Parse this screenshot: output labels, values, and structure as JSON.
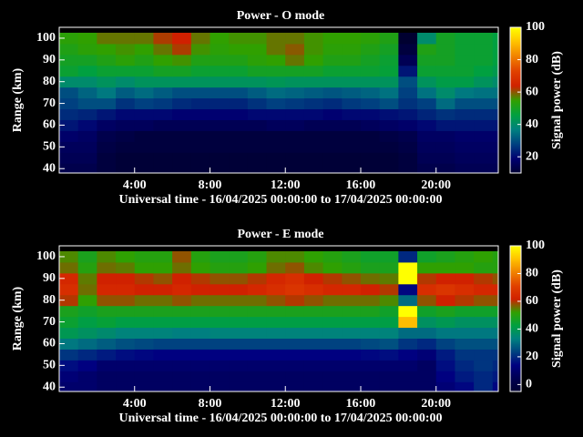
{
  "chart_data": [
    {
      "type": "heatmap",
      "title": "Power - O mode",
      "xlabel": "Universal time - 16/04/2025 00:00:00 to 17/04/2025 00:00:00",
      "ylabel": "Range (km)",
      "zlabel": "Signal power (dB)",
      "xlim": [
        0,
        23.3
      ],
      "xticks": [
        {
          "value": 4,
          "label": "4:00"
        },
        {
          "value": 8,
          "label": "8:00"
        },
        {
          "value": 12,
          "label": "12:00"
        },
        {
          "value": 16,
          "label": "16:00"
        },
        {
          "value": 20,
          "label": "20:00"
        }
      ],
      "ylim": [
        38,
        105
      ],
      "yticks": [
        40,
        50,
        60,
        70,
        80,
        90,
        100
      ],
      "zlim": [
        10,
        100
      ],
      "zticks": [
        20,
        40,
        60,
        80,
        100
      ],
      "colorscale": [
        "#000030",
        "#000070",
        "#004080",
        "#008080",
        "#00a040",
        "#30a000",
        "#d02000",
        "#e04000",
        "#f08000",
        "#ffc000",
        "#ffff00"
      ],
      "xbins": [
        0,
        1,
        2,
        3,
        4,
        5,
        6,
        7,
        8,
        9,
        10,
        11,
        12,
        13,
        14,
        15,
        16,
        17,
        18,
        19,
        20,
        21,
        22,
        23,
        23.3
      ],
      "ybins": [
        37.5,
        42.5,
        47.5,
        52.5,
        57.5,
        62.5,
        67.5,
        72.5,
        77.5,
        82.5,
        87.5,
        92.5,
        97.5,
        102.5
      ],
      "z": [
        [
          14,
          14,
          12,
          11,
          11,
          11,
          11,
          11,
          11,
          11,
          11,
          11,
          11,
          11,
          11,
          11,
          11,
          11,
          12,
          14,
          14,
          15,
          15,
          15
        ],
        [
          15,
          15,
          12,
          11,
          11,
          11,
          11,
          11,
          11,
          11,
          11,
          11,
          11,
          11,
          11,
          11,
          11,
          11,
          12,
          15,
          15,
          16,
          16,
          16
        ],
        [
          16,
          16,
          13,
          12,
          12,
          12,
          12,
          12,
          12,
          12,
          12,
          12,
          12,
          12,
          12,
          12,
          12,
          12,
          13,
          16,
          16,
          17,
          17,
          17
        ],
        [
          18,
          17,
          14,
          13,
          12,
          12,
          12,
          12,
          12,
          12,
          12,
          12,
          12,
          12,
          12,
          12,
          12,
          13,
          14,
          17,
          17,
          18,
          18,
          18
        ],
        [
          22,
          20,
          17,
          16,
          16,
          15,
          15,
          15,
          15,
          15,
          15,
          16,
          16,
          15,
          15,
          15,
          16,
          17,
          18,
          20,
          22,
          22,
          22,
          22
        ],
        [
          25,
          24,
          22,
          20,
          20,
          20,
          19,
          19,
          19,
          19,
          20,
          20,
          20,
          20,
          19,
          20,
          20,
          21,
          22,
          24,
          26,
          25,
          25,
          25
        ],
        [
          28,
          30,
          30,
          26,
          28,
          27,
          25,
          24,
          24,
          24,
          26,
          28,
          27,
          26,
          25,
          27,
          28,
          30,
          26,
          28,
          34,
          30,
          30,
          30
        ],
        [
          30,
          33,
          36,
          32,
          34,
          32,
          30,
          30,
          30,
          30,
          32,
          34,
          33,
          32,
          31,
          32,
          33,
          35,
          28,
          35,
          40,
          36,
          35,
          35
        ],
        [
          40,
          40,
          42,
          40,
          42,
          42,
          42,
          42,
          42,
          42,
          42,
          43,
          42,
          42,
          42,
          42,
          42,
          42,
          30,
          42,
          45,
          45,
          42,
          40
        ],
        [
          48,
          46,
          48,
          48,
          48,
          50,
          50,
          48,
          48,
          48,
          50,
          50,
          50,
          50,
          48,
          48,
          48,
          47,
          22,
          48,
          48,
          48,
          46,
          44
        ],
        [
          50,
          50,
          52,
          54,
          52,
          55,
          56,
          52,
          52,
          52,
          54,
          55,
          58,
          55,
          52,
          52,
          50,
          48,
          15,
          50,
          50,
          48,
          48,
          46
        ],
        [
          52,
          54,
          55,
          56,
          55,
          58,
          62,
          56,
          54,
          55,
          55,
          58,
          60,
          56,
          54,
          54,
          52,
          50,
          12,
          52,
          50,
          48,
          48,
          46
        ],
        [
          54,
          55,
          58,
          58,
          58,
          62,
          64,
          58,
          55,
          56,
          56,
          58,
          58,
          56,
          55,
          55,
          54,
          52,
          10,
          40,
          50,
          48,
          48,
          46
        ]
      ]
    },
    {
      "type": "heatmap",
      "title": "Power - E mode",
      "xlabel": "Universal time - 16/04/2025 00:00:00 to 17/04/2025 00:00:00",
      "ylabel": "Range (km)",
      "zlabel": "Signal power (dB)",
      "xlim": [
        0,
        23.3
      ],
      "xticks": [
        {
          "value": 4,
          "label": "4:00"
        },
        {
          "value": 8,
          "label": "8:00"
        },
        {
          "value": 12,
          "label": "12:00"
        },
        {
          "value": 16,
          "label": "16:00"
        },
        {
          "value": 20,
          "label": "20:00"
        }
      ],
      "ylim": [
        38,
        105
      ],
      "yticks": [
        40,
        50,
        60,
        70,
        80,
        90,
        100
      ],
      "zlim": [
        -5,
        100
      ],
      "zticks": [
        0,
        20,
        40,
        60,
        80,
        100
      ],
      "colorscale": [
        "#000030",
        "#000050",
        "#000080",
        "#004080",
        "#008080",
        "#00a040",
        "#30a000",
        "#d02000",
        "#e04000",
        "#f08000",
        "#ffc000",
        "#ffff00"
      ],
      "xbins": [
        0,
        1,
        2,
        3,
        4,
        5,
        6,
        7,
        8,
        9,
        10,
        11,
        12,
        13,
        14,
        15,
        16,
        17,
        18,
        19,
        20,
        21,
        22,
        23,
        23.3
      ],
      "ybins": [
        37.5,
        42.5,
        47.5,
        52.5,
        57.5,
        62.5,
        67.5,
        72.5,
        77.5,
        82.5,
        87.5,
        92.5,
        97.5,
        102.5
      ],
      "z": [
        [
          10,
          10,
          8,
          8,
          8,
          8,
          8,
          8,
          8,
          8,
          8,
          8,
          8,
          8,
          8,
          8,
          8,
          8,
          8,
          8,
          12,
          15,
          20,
          15
        ],
        [
          12,
          10,
          8,
          8,
          8,
          8,
          8,
          8,
          8,
          8,
          8,
          8,
          8,
          8,
          8,
          8,
          8,
          8,
          8,
          8,
          14,
          18,
          20,
          18
        ],
        [
          16,
          14,
          10,
          10,
          10,
          10,
          10,
          10,
          10,
          10,
          10,
          10,
          10,
          10,
          10,
          10,
          10,
          10,
          10,
          8,
          16,
          20,
          22,
          20
        ],
        [
          22,
          20,
          18,
          16,
          15,
          14,
          14,
          14,
          14,
          14,
          14,
          14,
          14,
          14,
          14,
          14,
          15,
          16,
          14,
          12,
          18,
          22,
          22,
          22
        ],
        [
          32,
          30,
          28,
          26,
          25,
          24,
          24,
          24,
          24,
          24,
          24,
          24,
          24,
          24,
          24,
          24,
          25,
          26,
          22,
          20,
          24,
          26,
          26,
          26
        ],
        [
          40,
          38,
          36,
          34,
          34,
          34,
          33,
          33,
          34,
          34,
          34,
          34,
          34,
          34,
          34,
          34,
          34,
          34,
          30,
          30,
          32,
          32,
          32,
          32
        ],
        [
          45,
          42,
          44,
          42,
          42,
          42,
          42,
          42,
          42,
          42,
          42,
          42,
          42,
          42,
          42,
          42,
          42,
          42,
          90,
          38,
          40,
          38,
          38,
          38
        ],
        [
          48,
          46,
          48,
          48,
          48,
          48,
          48,
          48,
          48,
          48,
          48,
          48,
          48,
          48,
          48,
          48,
          48,
          46,
          100,
          46,
          48,
          46,
          46,
          46
        ],
        [
          60,
          52,
          58,
          58,
          56,
          56,
          58,
          56,
          56,
          56,
          56,
          58,
          60,
          58,
          56,
          56,
          56,
          54,
          30,
          58,
          62,
          60,
          58,
          58
        ],
        [
          66,
          56,
          64,
          64,
          62,
          62,
          64,
          62,
          62,
          62,
          64,
          66,
          68,
          66,
          64,
          64,
          62,
          60,
          15,
          66,
          68,
          66,
          64,
          64
        ],
        [
          64,
          55,
          62,
          62,
          60,
          58,
          62,
          60,
          58,
          58,
          60,
          64,
          66,
          62,
          60,
          58,
          56,
          55,
          100,
          60,
          62,
          62,
          60,
          58
        ],
        [
          56,
          50,
          56,
          55,
          52,
          52,
          56,
          52,
          50,
          50,
          52,
          56,
          58,
          54,
          52,
          50,
          48,
          48,
          100,
          52,
          52,
          52,
          50,
          50
        ],
        [
          54,
          48,
          54,
          52,
          50,
          50,
          58,
          50,
          48,
          48,
          50,
          54,
          54,
          52,
          50,
          48,
          46,
          46,
          20,
          46,
          48,
          50,
          52,
          50
        ]
      ]
    }
  ]
}
